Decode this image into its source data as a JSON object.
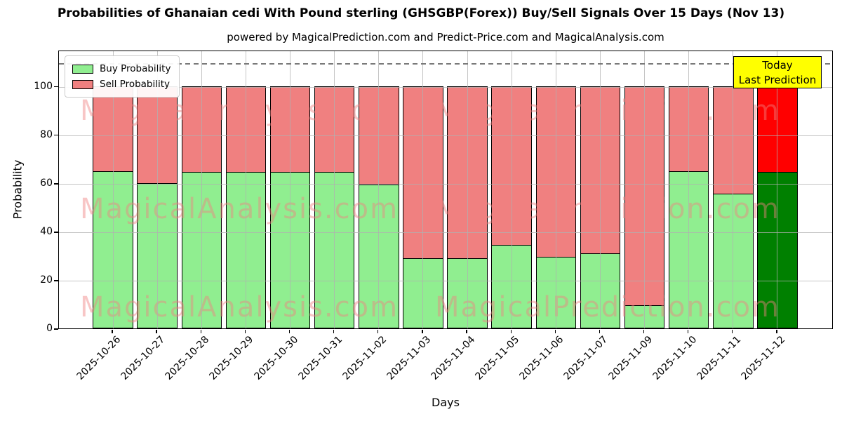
{
  "title": "Probabilities of Ghanaian cedi With Pound sterling (GHSGBP(Forex)) Buy/Sell Signals Over 15 Days (Nov 13)",
  "subtitle": "powered by MagicalPrediction.com and Predict-Price.com and MagicalAnalysis.com",
  "xlabel": "Days",
  "ylabel": "Probability",
  "legend": {
    "items": [
      {
        "label": "Buy Probability",
        "color": "#90ee90"
      },
      {
        "label": "Sell Probability",
        "color": "#f08080"
      }
    ]
  },
  "annotation": {
    "line1": "Today",
    "line2": "Last Prediction",
    "bg_color": "#ffff00",
    "border_color": "#000000"
  },
  "watermarks": {
    "left": "MagicalAnalysis.com",
    "right": "MagicalPrediction.com",
    "color": "rgba(240,128,128,0.45)"
  },
  "chart_data": {
    "type": "bar",
    "stacked": true,
    "title": "Probabilities of Ghanaian cedi With Pound sterling (GHSGBP(Forex)) Buy/Sell Signals Over 15 Days (Nov 13)",
    "xlabel": "Days",
    "ylabel": "Probability",
    "categories": [
      "2025-10-26",
      "2025-10-27",
      "2025-10-28",
      "2025-10-29",
      "2025-10-30",
      "2025-10-31",
      "2025-11-02",
      "2025-11-03",
      "2025-11-04",
      "2025-11-05",
      "2025-11-06",
      "2025-11-07",
      "2025-11-09",
      "2025-11-10",
      "2025-11-11",
      "2025-11-12"
    ],
    "series": [
      {
        "name": "Buy Probability",
        "color": "#90ee90",
        "values": [
          65,
          60,
          64.5,
          64.5,
          64.5,
          64.5,
          59.5,
          29,
          29,
          34.5,
          29.5,
          31,
          9.5,
          65,
          55.5,
          64.5
        ]
      },
      {
        "name": "Sell Probability",
        "color": "#f08080",
        "values": [
          35,
          40,
          35.5,
          35.5,
          35.5,
          35.5,
          40.5,
          71,
          71,
          65.5,
          70.5,
          69,
          90.5,
          35,
          44.5,
          35.5
        ]
      }
    ],
    "today_bar": {
      "index": 15,
      "buy_color": "#008000",
      "sell_color": "#ff0000"
    },
    "bar_edge_color": "#000000",
    "ylim": [
      0,
      115
    ],
    "yticks": [
      0,
      20,
      40,
      60,
      80,
      100
    ],
    "dashed_line_y": 110,
    "grid": true,
    "legend_position": "upper left"
  }
}
